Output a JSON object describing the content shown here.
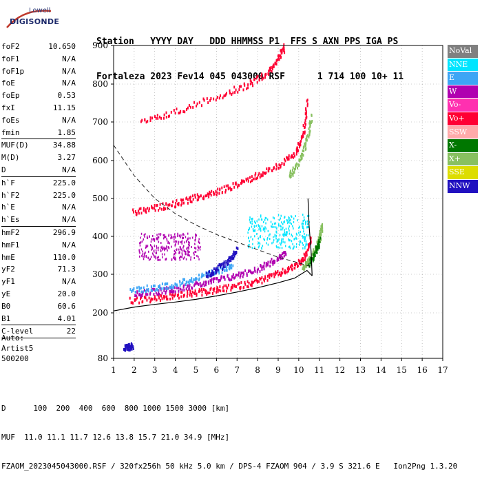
{
  "logo": {
    "line1": "Lowell",
    "line2": "DIGISONDE"
  },
  "header": {
    "row1": "Station   YYYY DAY   DDD HHMMSS P1  FFS S AXN PPS IGA PS",
    "row2": "Fortaleza 2023 Fev14 045 043000 RSF      1 714 100 10+ 11"
  },
  "params_group1": [
    {
      "name": "foF2",
      "value": "10.650"
    },
    {
      "name": "foF1",
      "value": "N/A"
    },
    {
      "name": "foF1p",
      "value": "N/A"
    },
    {
      "name": "foE",
      "value": "N/A"
    },
    {
      "name": "foEp",
      "value": "0.53"
    },
    {
      "name": "fxI",
      "value": "11.15"
    },
    {
      "name": "foEs",
      "value": "N/A"
    },
    {
      "name": "fmin",
      "value": "1.85"
    }
  ],
  "params_group2": [
    {
      "name": "MUF(D)",
      "value": "34.88"
    },
    {
      "name": "M(D)",
      "value": "3.27"
    },
    {
      "name": "D",
      "value": "N/A"
    }
  ],
  "params_group3": [
    {
      "name": "h`F",
      "value": "225.0"
    },
    {
      "name": "h`F2",
      "value": "225.0"
    },
    {
      "name": "h`E",
      "value": "N/A"
    },
    {
      "name": "h`Es",
      "value": "N/A"
    }
  ],
  "params_group4": [
    {
      "name": "hmF2",
      "value": "296.9"
    },
    {
      "name": "hmF1",
      "value": "N/A"
    },
    {
      "name": "hmE",
      "value": "110.0"
    },
    {
      "name": "yF2",
      "value": "71.3"
    },
    {
      "name": "yF1",
      "value": "N/A"
    },
    {
      "name": "yE",
      "value": "20.0"
    },
    {
      "name": "B0",
      "value": "60.6"
    },
    {
      "name": "B1",
      "value": "4.01"
    }
  ],
  "params_group5": [
    {
      "name": "C-level",
      "value": "22"
    }
  ],
  "auto": {
    "line1": "Auto:",
    "line2": "Artist5",
    "line3": "500200"
  },
  "footer": {
    "row1": "D      100  200  400  600  800 1000 1500 3000 [km]",
    "row2": "MUF  11.0 11.1 11.7 12.6 13.8 15.7 21.0 34.9 [MHz]",
    "row3": "FZAOM_2023045043000.RSF / 320fx256h 50 kHz 5.0 km / DPS-4 FZAOM 904 / 3.9 S 321.6 E   Ion2Png 1.3.20"
  },
  "legend": [
    {
      "label": "NoVal",
      "color": "#808080"
    },
    {
      "label": "NNE",
      "color": "#00e5ff"
    },
    {
      "label": "E",
      "color": "#3da5f5"
    },
    {
      "label": "W",
      "color": "#b000b0"
    },
    {
      "label": "Vo-",
      "color": "#ff30b0"
    },
    {
      "label": "Vo+",
      "color": "#ff0033"
    },
    {
      "label": "SSW",
      "color": "#ffaaaa"
    },
    {
      "label": "X-",
      "color": "#007700"
    },
    {
      "label": "X+",
      "color": "#88c060"
    },
    {
      "label": "SSE",
      "color": "#dddd00"
    },
    {
      "label": "NNW",
      "color": "#2010c0"
    }
  ],
  "chart_data": {
    "type": "scatter",
    "xlim": [
      1,
      17
    ],
    "ylim": [
      80,
      900
    ],
    "x_ticks": [
      "1",
      "2",
      "3",
      "4",
      "5",
      "6",
      "7",
      "8",
      "9",
      "10",
      "11",
      "12",
      "13",
      "14",
      "15",
      "16",
      "17"
    ],
    "y_ticks": [
      "80",
      "200",
      "300",
      "400",
      "500",
      "600",
      "700",
      "800",
      "900"
    ],
    "grid": "dotted",
    "legend_position": "right",
    "series": [
      {
        "name": "Vo+",
        "color": "#ff0033",
        "traces": [
          {
            "x": [
              1.8,
              3,
              4,
              5,
              6,
              7,
              8,
              9,
              9.8,
              10.3,
              10.6
            ],
            "y": [
              235,
              240,
              248,
              255,
              262,
              272,
              285,
              305,
              325,
              350,
              400
            ]
          },
          {
            "x": [
              1.9,
              3,
              4,
              5,
              6,
              7,
              8,
              9,
              9.8,
              10.2,
              10.4
            ],
            "y": [
              465,
              478,
              490,
              505,
              520,
              540,
              565,
              590,
              620,
              670,
              760
            ]
          },
          {
            "x": [
              2.3,
              4,
              6,
              7.5,
              8.5,
              9,
              9.3
            ],
            "y": [
              700,
              730,
              770,
              800,
              835,
              870,
              900
            ]
          }
        ]
      },
      {
        "name": "W",
        "color": "#b000b0",
        "traces": [
          {
            "x": [
              2,
              3,
              4,
              5,
              6,
              7,
              8,
              8.8,
              9.4
            ],
            "y": [
              252,
              258,
              266,
              276,
              288,
              300,
              318,
              340,
              360
            ]
          }
        ]
      },
      {
        "name": "E",
        "color": "#3da5f5",
        "traces": [
          {
            "x": [
              1.8,
              3,
              4,
              5,
              6,
              6.8
            ],
            "y": [
              262,
              268,
              278,
              292,
              310,
              330
            ]
          }
        ]
      },
      {
        "name": "NNW",
        "color": "#2010c0",
        "traces": [
          {
            "x": [
              1.5,
              1.7,
              1.9
            ],
            "y": [
              110,
              112,
              116
            ]
          },
          {
            "x": [
              5.5,
              6,
              6.6,
              7
            ],
            "y": [
              300,
              315,
              340,
              370
            ]
          }
        ]
      },
      {
        "name": "X+",
        "color": "#88c060",
        "traces": [
          {
            "x": [
              10.2,
              10.5,
              10.8,
              11.0,
              11.1
            ],
            "y": [
              320,
              340,
              370,
              400,
              430
            ]
          },
          {
            "x": [
              9.5,
              10.0,
              10.4,
              10.6
            ],
            "y": [
              560,
              600,
              660,
              720
            ]
          }
        ]
      },
      {
        "name": "X-",
        "color": "#007700",
        "traces": [
          {
            "x": [
              10.5,
              10.8,
              11.0
            ],
            "y": [
              330,
              360,
              395
            ]
          }
        ]
      }
    ],
    "scatter_clouds": [
      {
        "name": "W",
        "color": "#b000b0",
        "x_range": [
          2.2,
          5.2
        ],
        "y_range": [
          340,
          410
        ]
      },
      {
        "name": "NNE",
        "color": "#00e5ff",
        "x_range": [
          7.5,
          10.5
        ],
        "y_range": [
          370,
          460
        ]
      }
    ],
    "profile_curve": {
      "x": [
        1,
        2,
        3,
        4,
        5,
        6,
        7,
        8,
        9,
        9.8,
        10.4,
        10.65
      ],
      "y": [
        205,
        215,
        222,
        228,
        235,
        244,
        254,
        265,
        278,
        290,
        310,
        296
      ]
    },
    "muf_curve": {
      "x": [
        1,
        2,
        3,
        4,
        5,
        6,
        7,
        8,
        9,
        10,
        10.6
      ],
      "y": [
        640,
        560,
        500,
        460,
        430,
        405,
        385,
        365,
        345,
        330,
        320
      ]
    },
    "profile_vertical": {
      "x": [
        10.65,
        10.6,
        10.5,
        10.45
      ],
      "y": [
        296,
        360,
        430,
        500
      ]
    }
  }
}
